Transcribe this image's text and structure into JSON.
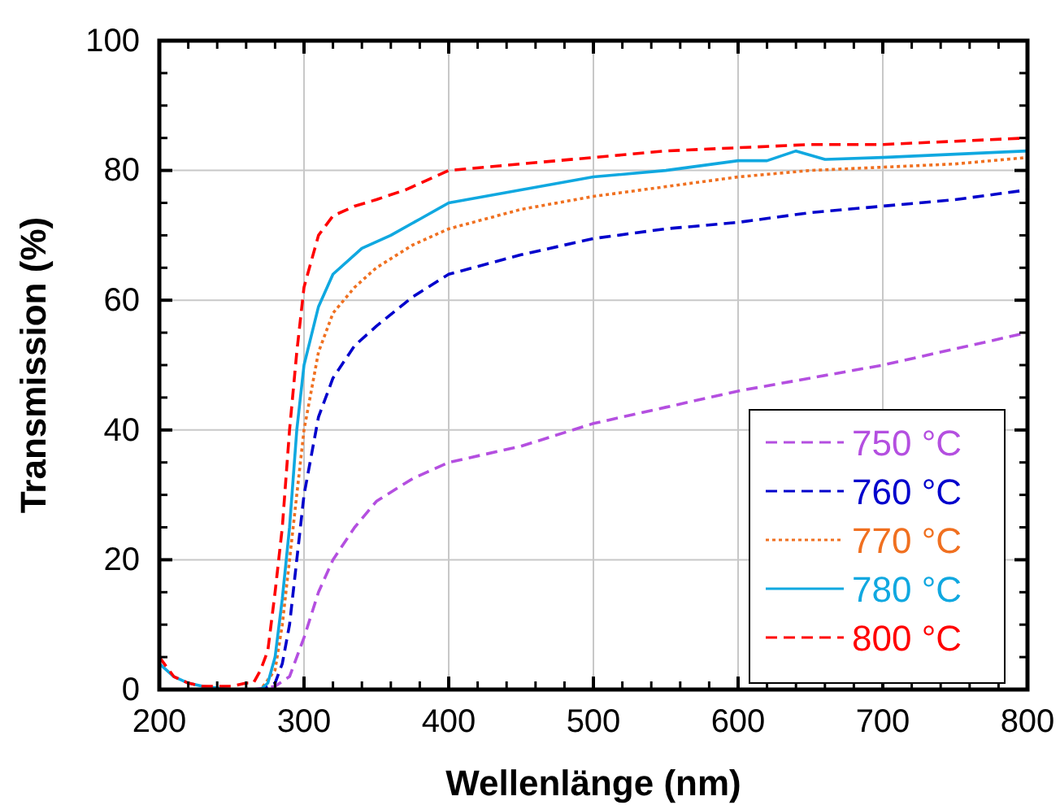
{
  "chart_data": {
    "type": "line",
    "xlabel": "Wellenlänge (nm)",
    "ylabel": "Transmission (%)",
    "xlim": [
      200,
      800
    ],
    "xticks": [
      200,
      300,
      400,
      500,
      600,
      700,
      800
    ],
    "ylim": [
      0,
      100
    ],
    "yticks": [
      0,
      20,
      40,
      60,
      80,
      100
    ],
    "grid": true,
    "legend": "bottom right",
    "marker": "none",
    "series": [
      {
        "name": "750 °C",
        "color": "#b44fe0",
        "line_style": "dashed",
        "x": [
          265,
          280,
          290,
          300,
          310,
          320,
          335,
          350,
          375,
          400,
          450,
          500,
          550,
          600,
          650,
          700,
          750,
          800
        ],
        "values": [
          0,
          0.5,
          2,
          8,
          15,
          20,
          25,
          29,
          32.5,
          35,
          37.5,
          41,
          43.5,
          46,
          48,
          50,
          52.5,
          55
        ]
      },
      {
        "name": "760 °C",
        "color": "#0000cc",
        "line_style": "dashed",
        "x": [
          255,
          270,
          280,
          285,
          290,
          295,
          300,
          310,
          320,
          335,
          350,
          375,
          400,
          450,
          500,
          550,
          600,
          650,
          700,
          750,
          800
        ],
        "values": [
          0,
          0,
          1,
          4,
          10,
          20,
          30,
          42,
          48,
          53,
          56,
          60.5,
          64,
          67,
          69.5,
          71,
          72,
          73.5,
          74.5,
          75.5,
          77
        ]
      },
      {
        "name": "770 °C",
        "color": "#f07020",
        "line_style": "dotted",
        "x": [
          250,
          270,
          280,
          285,
          290,
          295,
          300,
          310,
          320,
          335,
          350,
          375,
          400,
          450,
          500,
          550,
          600,
          650,
          700,
          750,
          800
        ],
        "values": [
          0,
          0,
          3,
          10,
          20,
          30,
          40,
          52,
          58,
          62,
          65,
          68.5,
          71,
          74,
          76,
          77.5,
          79,
          80,
          80.5,
          81,
          82
        ]
      },
      {
        "name": "780 °C",
        "color": "#10a8e0",
        "line_style": "solid",
        "x": [
          200,
          210,
          220,
          230,
          250,
          270,
          275,
          280,
          285,
          290,
          295,
          300,
          310,
          320,
          340,
          360,
          380,
          400,
          450,
          500,
          550,
          600,
          620,
          640,
          660,
          700,
          750,
          800
        ],
        "values": [
          4,
          2,
          1,
          0.5,
          0,
          0,
          1,
          5,
          14,
          25,
          40,
          50,
          59,
          64,
          68,
          70,
          72.5,
          75,
          77,
          79,
          80,
          81.5,
          81.5,
          83,
          81.7,
          82,
          82.5,
          83
        ]
      },
      {
        "name": "800 °C",
        "color": "#ff0000",
        "line_style": "dashed",
        "x": [
          200,
          210,
          220,
          230,
          250,
          260,
          265,
          270,
          275,
          280,
          285,
          290,
          295,
          300,
          310,
          320,
          335,
          350,
          370,
          385,
          400,
          450,
          500,
          550,
          600,
          650,
          700,
          750,
          800
        ],
        "values": [
          5,
          2,
          1,
          0.5,
          0.5,
          1,
          1,
          3,
          6,
          15,
          25,
          40,
          52,
          62,
          70,
          73,
          74.5,
          75.5,
          77,
          78.5,
          80,
          81,
          82,
          83,
          83.5,
          84,
          84,
          84.5,
          85
        ]
      }
    ]
  }
}
